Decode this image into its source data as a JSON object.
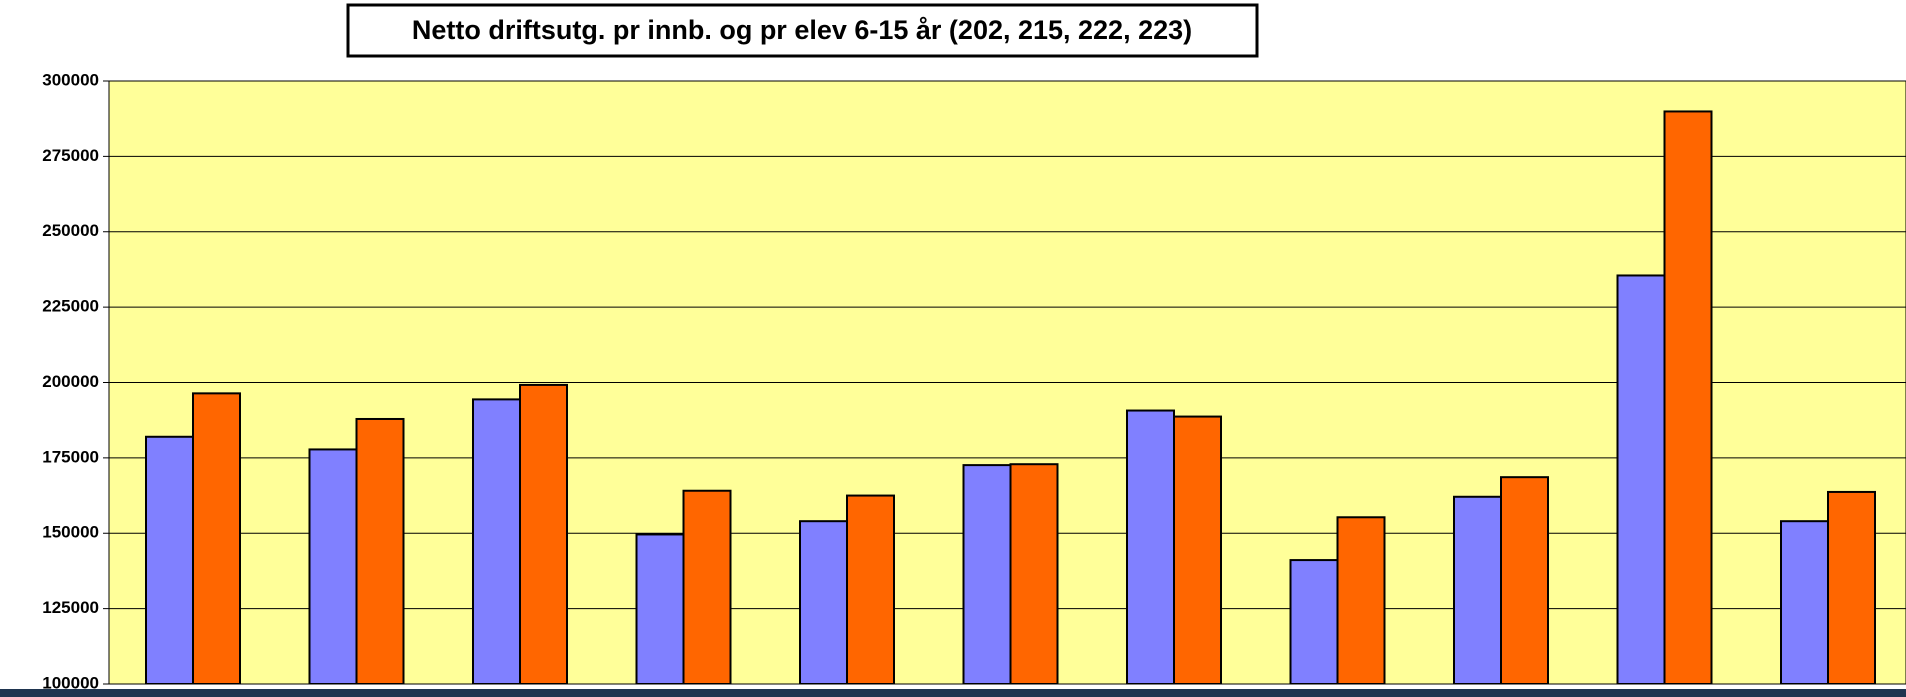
{
  "chart_data": {
    "type": "bar",
    "title": "Netto driftsutg.  pr innb. og pr elev 6-15 år (202, 215, 222, 223)",
    "categories": [
      null,
      null,
      null,
      null,
      null,
      null,
      null,
      null,
      null,
      null,
      null
    ],
    "series": [
      {
        "color": "#8080ff",
        "values": [
          182000,
          177800,
          194400,
          149600,
          154000,
          172600,
          190700,
          141100,
          162100,
          235500,
          154000
        ]
      },
      {
        "color": "#ff6600",
        "values": [
          196400,
          187900,
          199200,
          164100,
          162500,
          172900,
          188700,
          155300,
          168600,
          289900,
          163700
        ]
      }
    ],
    "ylim": [
      100000,
      300000
    ],
    "yticks": [
      100000,
      125000,
      150000,
      175000,
      200000,
      225000,
      250000,
      275000,
      300000
    ],
    "grid": true,
    "plot_background": "#ffff99"
  }
}
